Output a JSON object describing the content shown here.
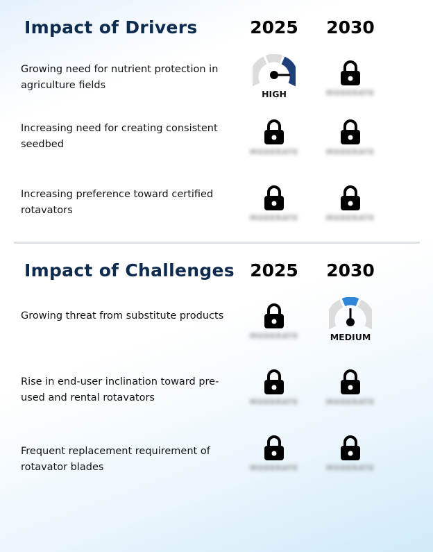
{
  "drivers": {
    "title": "Impact of Drivers",
    "years": [
      "2025",
      "2030"
    ],
    "rows": [
      {
        "label": "Growing need for nutrient protection in agriculture fields",
        "y2025": "HIGH",
        "y2030": "MODERATE"
      },
      {
        "label": "Increasing need for creating consistent seedbed",
        "y2025": "MODERATE",
        "y2030": "MODERATE"
      },
      {
        "label": "Increasing preference toward certified rotavators",
        "y2025": "MODERATE",
        "y2030": "MODERATE"
      }
    ]
  },
  "challenges": {
    "title": "Impact of Challenges",
    "years": [
      "2025",
      "2030"
    ],
    "rows": [
      {
        "label": "Growing threat from substitute products",
        "y2025": "MODERATE",
        "y2030": "MEDIUM"
      },
      {
        "label": "Rise in end-user inclination toward pre-used and rental rotavators",
        "y2025": "MODERATE",
        "y2030": "MODERATE"
      },
      {
        "label": "Frequent replacement requirement of rotavator blades",
        "y2025": "MODERATE",
        "y2030": "MODERATE"
      }
    ]
  },
  "colors": {
    "heading": "#0d2a4f",
    "gauge_high": "#1f3f7a",
    "gauge_medium": "#2f86d6",
    "gauge_track": "#dcdcdc"
  },
  "icons": {
    "lock": "lock-icon",
    "gauge": "gauge-icon"
  }
}
